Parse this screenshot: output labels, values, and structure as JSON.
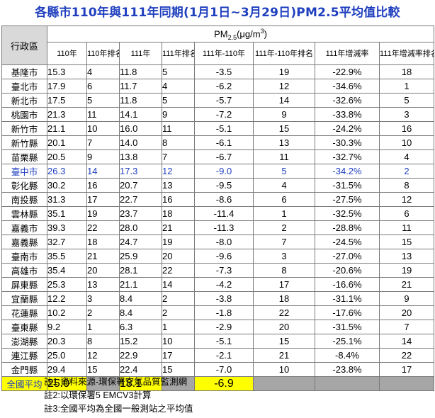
{
  "title": "各縣市110年與111年同期(1月1日~3月29日)PM2.5平均值比較",
  "header": {
    "region": "行政區",
    "pm_main": "PM",
    "pm_sub": "2.5",
    "pm_unit_a": "(μg/m",
    "pm_unit_sup": "3",
    "pm_unit_b": ")",
    "cols": [
      "110年",
      "110年排名",
      "111年",
      "111年排名",
      "111年-110年",
      "111年-110年排名",
      "111年增減率",
      "111年增減率排名"
    ]
  },
  "rows": [
    {
      "region": "基隆市",
      "v110": "15.3",
      "r110": "4",
      "v111": "11.8",
      "r111": "5",
      "diff": "-3.5",
      "rdiff": "19",
      "pct": "-22.9%",
      "rpct": "18"
    },
    {
      "region": "臺北市",
      "v110": "17.9",
      "r110": "6",
      "v111": "11.7",
      "r111": "4",
      "diff": "-6.2",
      "rdiff": "12",
      "pct": "-34.6%",
      "rpct": "1"
    },
    {
      "region": "新北市",
      "v110": "17.5",
      "r110": "5",
      "v111": "11.8",
      "r111": "5",
      "diff": "-5.7",
      "rdiff": "14",
      "pct": "-32.6%",
      "rpct": "5"
    },
    {
      "region": "桃園市",
      "v110": "21.3",
      "r110": "11",
      "v111": "14.1",
      "r111": "9",
      "diff": "-7.2",
      "rdiff": "9",
      "pct": "-33.8%",
      "rpct": "3"
    },
    {
      "region": "新竹市",
      "v110": "21.1",
      "r110": "10",
      "v111": "16.0",
      "r111": "11",
      "diff": "-5.1",
      "rdiff": "15",
      "pct": "-24.2%",
      "rpct": "16"
    },
    {
      "region": "新竹縣",
      "v110": "20.1",
      "r110": "7",
      "v111": "14.0",
      "r111": "8",
      "diff": "-6.1",
      "rdiff": "13",
      "pct": "-30.3%",
      "rpct": "10"
    },
    {
      "region": "苗栗縣",
      "v110": "20.5",
      "r110": "9",
      "v111": "13.8",
      "r111": "7",
      "diff": "-6.7",
      "rdiff": "11",
      "pct": "-32.7%",
      "rpct": "4"
    },
    {
      "region": "臺中市",
      "v110": "26.3",
      "r110": "14",
      "v111": "17.3",
      "r111": "12",
      "diff": "-9.0",
      "rdiff": "5",
      "pct": "-34.2%",
      "rpct": "2",
      "highlight": true
    },
    {
      "region": "彰化縣",
      "v110": "30.2",
      "r110": "16",
      "v111": "20.7",
      "r111": "13",
      "diff": "-9.5",
      "rdiff": "4",
      "pct": "-31.5%",
      "rpct": "8"
    },
    {
      "region": "南投縣",
      "v110": "31.3",
      "r110": "17",
      "v111": "22.7",
      "r111": "16",
      "diff": "-8.6",
      "rdiff": "6",
      "pct": "-27.5%",
      "rpct": "12"
    },
    {
      "region": "雲林縣",
      "v110": "35.1",
      "r110": "19",
      "v111": "23.7",
      "r111": "18",
      "diff": "-11.4",
      "rdiff": "1",
      "pct": "-32.5%",
      "rpct": "6"
    },
    {
      "region": "嘉義市",
      "v110": "39.3",
      "r110": "22",
      "v111": "28.0",
      "r111": "21",
      "diff": "-11.3",
      "rdiff": "2",
      "pct": "-28.8%",
      "rpct": "11"
    },
    {
      "region": "嘉義縣",
      "v110": "32.7",
      "r110": "18",
      "v111": "24.7",
      "r111": "19",
      "diff": "-8.0",
      "rdiff": "7",
      "pct": "-24.5%",
      "rpct": "15"
    },
    {
      "region": "臺南市",
      "v110": "35.5",
      "r110": "21",
      "v111": "25.9",
      "r111": "20",
      "diff": "-9.6",
      "rdiff": "3",
      "pct": "-27.0%",
      "rpct": "13"
    },
    {
      "region": "高雄市",
      "v110": "35.4",
      "r110": "20",
      "v111": "28.1",
      "r111": "22",
      "diff": "-7.3",
      "rdiff": "8",
      "pct": "-20.6%",
      "rpct": "19"
    },
    {
      "region": "屏東縣",
      "v110": "25.3",
      "r110": "13",
      "v111": "21.1",
      "r111": "14",
      "diff": "-4.2",
      "rdiff": "17",
      "pct": "-16.6%",
      "rpct": "21"
    },
    {
      "region": "宜蘭縣",
      "v110": "12.2",
      "r110": "3",
      "v111": "8.4",
      "r111": "2",
      "diff": "-3.8",
      "rdiff": "18",
      "pct": "-31.1%",
      "rpct": "9"
    },
    {
      "region": "花蓮縣",
      "v110": "10.2",
      "r110": "2",
      "v111": "8.4",
      "r111": "2",
      "diff": "-1.8",
      "rdiff": "22",
      "pct": "-17.6%",
      "rpct": "20"
    },
    {
      "region": "臺東縣",
      "v110": "9.2",
      "r110": "1",
      "v111": "6.3",
      "r111": "1",
      "diff": "-2.9",
      "rdiff": "20",
      "pct": "-31.5%",
      "rpct": "7"
    },
    {
      "region": "澎湖縣",
      "v110": "20.3",
      "r110": "8",
      "v111": "15.2",
      "r111": "10",
      "diff": "-5.1",
      "rdiff": "15",
      "pct": "-25.1%",
      "rpct": "14"
    },
    {
      "region": "連江縣",
      "v110": "25.0",
      "r110": "12",
      "v111": "22.9",
      "r111": "17",
      "diff": "-2.1",
      "rdiff": "21",
      "pct": "-8.4%",
      "rpct": "22"
    },
    {
      "region": "金門縣",
      "v110": "29.4",
      "r110": "15",
      "v111": "22.4",
      "r111": "15",
      "diff": "-7.0",
      "rdiff": "10",
      "pct": "-23.8%",
      "rpct": "17"
    }
  ],
  "average": {
    "region": "全國平均",
    "v110": "25.0",
    "v111": "18.1",
    "diff": "-6.9"
  },
  "notes": [
    "註1:資料來源-環保署空氣品質監測網",
    "註2:以環保署5 EMCV3計算",
    "註3:全國平均為全國一般測站之平均值"
  ],
  "colors": {
    "title": "#1f3fbf",
    "highlight_row": "#1f3fbf",
    "average_fill": "#ffff00",
    "blank_fill": "#a6a6a6",
    "region_header_fill": "#d9d9d9"
  }
}
